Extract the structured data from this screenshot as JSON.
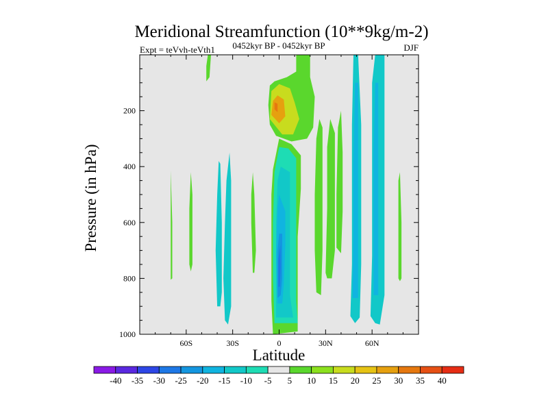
{
  "chart_data": {
    "type": "heatmap",
    "title": "Meridional Streamfunction (10**9kg/m-2)",
    "left_label": "Expt = teVvh-teVth1",
    "center_label": "0452kyr BP - 0452kyr BP",
    "right_label": "DJF",
    "xlabel": "Latitude",
    "ylabel": "Pressure (in hPa)",
    "xlim": [
      -90,
      90
    ],
    "ylim": [
      1000,
      0
    ],
    "x_ticks": [
      {
        "value": -60,
        "label": "60S"
      },
      {
        "value": -30,
        "label": "30S"
      },
      {
        "value": 0,
        "label": "0"
      },
      {
        "value": 30,
        "label": "30N"
      },
      {
        "value": 60,
        "label": "60N"
      }
    ],
    "y_ticks": [
      {
        "value": 200,
        "label": "200"
      },
      {
        "value": 400,
        "label": "400"
      },
      {
        "value": 600,
        "label": "600"
      },
      {
        "value": 800,
        "label": "800"
      },
      {
        "value": 1000,
        "label": "1000"
      }
    ],
    "background_color": "#e6e6e6",
    "colorbar": {
      "labels": [
        "-40",
        "-35",
        "-30",
        "-25",
        "-20",
        "-15",
        "-10",
        "-5",
        "5",
        "10",
        "15",
        "20",
        "25",
        "30",
        "35",
        "40"
      ],
      "colors": [
        "#8a1ae6",
        "#5a28e0",
        "#2d46e6",
        "#1e78e6",
        "#1496e0",
        "#10b4e0",
        "#12c8c8",
        "#1edcb4",
        "#e6e6e6",
        "#5ad72d",
        "#8ce11e",
        "#c8dc1e",
        "#e6c314",
        "#e6a00f",
        "#e6780f",
        "#e65014",
        "#e62d14"
      ]
    },
    "regions": [
      {
        "level": 10,
        "points": [
          [
            -4,
            1000
          ],
          [
            -5,
            880
          ],
          [
            -5,
            700
          ],
          [
            -5,
            500
          ],
          [
            -4,
            410
          ],
          [
            0,
            300
          ],
          [
            8,
            320
          ],
          [
            14,
            360
          ],
          [
            14,
            480
          ],
          [
            12,
            650
          ],
          [
            12,
            820
          ],
          [
            12,
            990
          ]
        ]
      },
      {
        "level": -5,
        "points": [
          [
            -3,
            960
          ],
          [
            -4,
            800
          ],
          [
            -4,
            600
          ],
          [
            -3,
            420
          ],
          [
            0,
            330
          ],
          [
            6,
            335
          ],
          [
            11,
            370
          ],
          [
            11,
            500
          ],
          [
            11,
            700
          ],
          [
            11,
            880
          ],
          [
            12,
            960
          ]
        ]
      },
      {
        "level": -10,
        "points": [
          [
            -2,
            940
          ],
          [
            -2,
            780
          ],
          [
            -2,
            600
          ],
          [
            -1,
            450
          ],
          [
            1,
            400
          ],
          [
            7,
            420
          ],
          [
            7,
            550
          ],
          [
            7,
            700
          ],
          [
            7,
            860
          ],
          [
            9,
            940
          ]
        ]
      },
      {
        "level": -15,
        "points": [
          [
            -1,
            890
          ],
          [
            -2,
            720
          ],
          [
            -1,
            550
          ],
          [
            0,
            500
          ],
          [
            4,
            560
          ],
          [
            4,
            680
          ],
          [
            3,
            820
          ],
          [
            2,
            890
          ]
        ]
      },
      {
        "level": -20,
        "points": [
          [
            -1,
            870
          ],
          [
            -1,
            700
          ],
          [
            0,
            640
          ],
          [
            2,
            640
          ],
          [
            2,
            800
          ],
          [
            1,
            860
          ]
        ]
      },
      {
        "level": -25,
        "points": [
          [
            -0.5,
            830
          ],
          [
            -0.5,
            730
          ],
          [
            0.8,
            680
          ],
          [
            1,
            760
          ],
          [
            0.5,
            830
          ]
        ]
      },
      {
        "level": 10,
        "points": [
          [
            -7,
            180
          ],
          [
            -6,
            110
          ],
          [
            -3,
            95
          ],
          [
            5,
            80
          ],
          [
            11,
            60
          ],
          [
            11,
            0
          ],
          [
            20,
            0
          ],
          [
            20,
            80
          ],
          [
            23,
            150
          ],
          [
            22,
            260
          ],
          [
            18,
            300
          ],
          [
            8,
            310
          ],
          [
            -2,
            290
          ],
          [
            -6,
            250
          ]
        ]
      },
      {
        "level": 20,
        "points": [
          [
            -6,
            230
          ],
          [
            -5,
            130
          ],
          [
            0,
            105
          ],
          [
            7,
            120
          ],
          [
            10,
            170
          ],
          [
            13,
            230
          ],
          [
            9,
            285
          ],
          [
            2,
            285
          ]
        ]
      },
      {
        "level": 30,
        "points": [
          [
            -5,
            215
          ],
          [
            -4,
            165
          ],
          [
            -1,
            145
          ],
          [
            3,
            160
          ],
          [
            4,
            220
          ],
          [
            0,
            245
          ]
        ]
      },
      {
        "level": 35,
        "points": [
          [
            -3,
            195
          ],
          [
            -3,
            170
          ],
          [
            -1,
            175
          ],
          [
            -1,
            205
          ]
        ]
      },
      {
        "level": 10,
        "points": [
          [
            24,
            850
          ],
          [
            23,
            700
          ],
          [
            23,
            500
          ],
          [
            24,
            300
          ],
          [
            26,
            230
          ],
          [
            28,
            260
          ],
          [
            28,
            460
          ],
          [
            28,
            700
          ],
          [
            27,
            860
          ]
        ]
      },
      {
        "level": 10,
        "points": [
          [
            30,
            780
          ],
          [
            31,
            550
          ],
          [
            31,
            330
          ],
          [
            33,
            230
          ],
          [
            36,
            280
          ],
          [
            36,
            500
          ],
          [
            36,
            700
          ],
          [
            34,
            800
          ],
          [
            31,
            800
          ]
        ]
      },
      {
        "level": 10,
        "points": [
          [
            37,
            690
          ],
          [
            37,
            500
          ],
          [
            38,
            260
          ],
          [
            40,
            200
          ],
          [
            41,
            350
          ],
          [
            41,
            560
          ],
          [
            40,
            710
          ]
        ]
      },
      {
        "level": -10,
        "points": [
          [
            46,
            935
          ],
          [
            47,
            750
          ],
          [
            47,
            500
          ],
          [
            47,
            250
          ],
          [
            48,
            0
          ],
          [
            51,
            0
          ],
          [
            53,
            250
          ],
          [
            53,
            500
          ],
          [
            53,
            750
          ],
          [
            52,
            940
          ],
          [
            49,
            960
          ]
        ]
      },
      {
        "level": -15,
        "points": [
          [
            47.5,
            870
          ],
          [
            48,
            650
          ],
          [
            48,
            400
          ],
          [
            49,
            100
          ],
          [
            51,
            100
          ],
          [
            51,
            400
          ],
          [
            51,
            650
          ],
          [
            51,
            870
          ]
        ]
      },
      {
        "level": -10,
        "points": [
          [
            59,
            935
          ],
          [
            60,
            720
          ],
          [
            60,
            400
          ],
          [
            60,
            100
          ],
          [
            62,
            0
          ],
          [
            68,
            0
          ],
          [
            68,
            300
          ],
          [
            68,
            600
          ],
          [
            68,
            860
          ],
          [
            65,
            965
          ],
          [
            62,
            960
          ]
        ]
      },
      {
        "level": -15,
        "points": [
          [
            61,
            860
          ],
          [
            61,
            600
          ],
          [
            61,
            350
          ],
          [
            62,
            100
          ],
          [
            64,
            100
          ],
          [
            64,
            350
          ],
          [
            64,
            600
          ],
          [
            64,
            860
          ]
        ]
      },
      {
        "level": -10,
        "points": [
          [
            -40,
            900
          ],
          [
            -41,
            700
          ],
          [
            -40,
            500
          ],
          [
            -39,
            380
          ],
          [
            -38,
            390
          ],
          [
            -37,
            600
          ],
          [
            -37,
            850
          ],
          [
            -38,
            900
          ]
        ]
      },
      {
        "level": -10,
        "points": [
          [
            -35,
            950
          ],
          [
            -36,
            800
          ],
          [
            -35,
            600
          ],
          [
            -34,
            450
          ],
          [
            -32,
            350
          ],
          [
            -31,
            450
          ],
          [
            -31,
            700
          ],
          [
            -31,
            900
          ],
          [
            -33,
            965
          ]
        ]
      },
      {
        "level": 10,
        "points": [
          [
            -58,
            750
          ],
          [
            -58,
            550
          ],
          [
            -57,
            420
          ],
          [
            -56,
            500
          ],
          [
            -56,
            750
          ],
          [
            -57,
            775
          ]
        ]
      },
      {
        "level": 10,
        "points": [
          [
            -70,
            805
          ],
          [
            -70,
            600
          ],
          [
            -70,
            415
          ],
          [
            -69,
            600
          ],
          [
            -69,
            800
          ]
        ]
      },
      {
        "level": 10,
        "points": [
          [
            -17,
            780
          ],
          [
            -18,
            600
          ],
          [
            -18,
            500
          ],
          [
            -17,
            420
          ],
          [
            -16,
            500
          ],
          [
            -15,
            700
          ],
          [
            -16,
            780
          ]
        ]
      },
      {
        "level": 10,
        "points": [
          [
            -47,
            95
          ],
          [
            -47,
            40
          ],
          [
            -46,
            0
          ],
          [
            -44,
            0
          ],
          [
            -45,
            80
          ]
        ]
      },
      {
        "level": 10,
        "points": [
          [
            77,
            800
          ],
          [
            77,
            650
          ],
          [
            77,
            450
          ],
          [
            78,
            420
          ],
          [
            79,
            600
          ],
          [
            79,
            800
          ],
          [
            78,
            810
          ]
        ]
      }
    ]
  }
}
